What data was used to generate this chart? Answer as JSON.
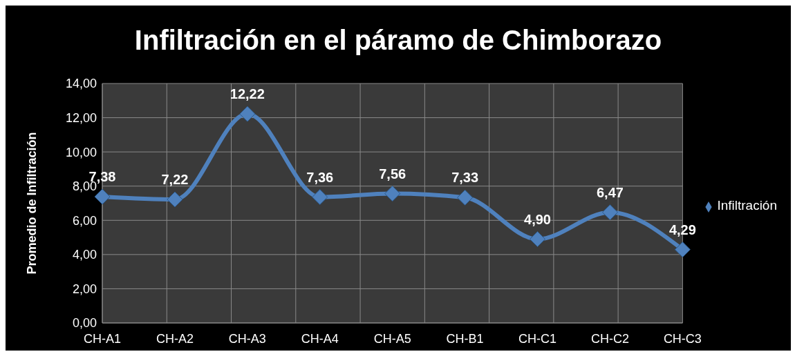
{
  "chart_data": {
    "type": "line",
    "title": "Infiltración en el páramo de Chimborazo",
    "ylabel": "Promedio de Infiltración",
    "categories": [
      "CH-A1",
      "CH-A2",
      "CH-A3",
      "CH-A4",
      "CH-A5",
      "CH-B1",
      "CH-C1",
      "CH-C2",
      "CH-C3"
    ],
    "series": [
      {
        "name": "Infiltración",
        "color": "#4f81bd",
        "values": [
          7.38,
          7.22,
          12.22,
          7.36,
          7.56,
          7.33,
          4.9,
          6.47,
          4.29
        ],
        "value_labels": [
          "7,38",
          "7,22",
          "12,22",
          "7,36",
          "7,56",
          "7,33",
          "4,90",
          "6,47",
          "4,29"
        ]
      }
    ],
    "ylim": [
      0,
      14
    ],
    "yticks": [
      {
        "value": 0,
        "label": "0,00"
      },
      {
        "value": 2,
        "label": "2,00"
      },
      {
        "value": 4,
        "label": "4,00"
      },
      {
        "value": 6,
        "label": "6,00"
      },
      {
        "value": 8,
        "label": "8,00"
      },
      {
        "value": 10,
        "label": "10,00"
      },
      {
        "value": 12,
        "label": "12,00"
      },
      {
        "value": 14,
        "label": "14,00"
      }
    ],
    "grid": true,
    "legend": "right",
    "marker": "diamond",
    "line_style": "solid"
  }
}
